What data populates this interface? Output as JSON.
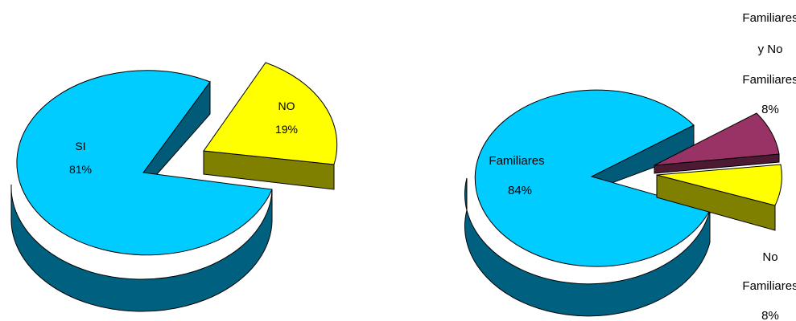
{
  "chart_data": [
    {
      "type": "pie",
      "three_d": true,
      "exploded": true,
      "slices": [
        {
          "label": "SI",
          "value": 81,
          "value_text": "81%",
          "color": "#00CCFF",
          "side_color": "#006080"
        },
        {
          "label": "NO",
          "value": 19,
          "value_text": "19%",
          "color": "#FFFF00",
          "side_color": "#808000"
        }
      ]
    },
    {
      "type": "pie",
      "three_d": true,
      "exploded": true,
      "slices": [
        {
          "label": "Familiares",
          "value": 84,
          "value_text": "84%",
          "color": "#00CCFF",
          "side_color": "#006080"
        },
        {
          "label": "Familiares y No Familiares",
          "value": 8,
          "value_text": "8%",
          "color": "#993366",
          "side_color": "#4D1A33",
          "label_lines": [
            "Familiares",
            "y No",
            "Familiares"
          ]
        },
        {
          "label": "No Familiares",
          "value": 8,
          "value_text": "8%",
          "color": "#FFFF00",
          "side_color": "#808000",
          "label_lines": [
            "No",
            "Familiares"
          ]
        }
      ]
    }
  ]
}
